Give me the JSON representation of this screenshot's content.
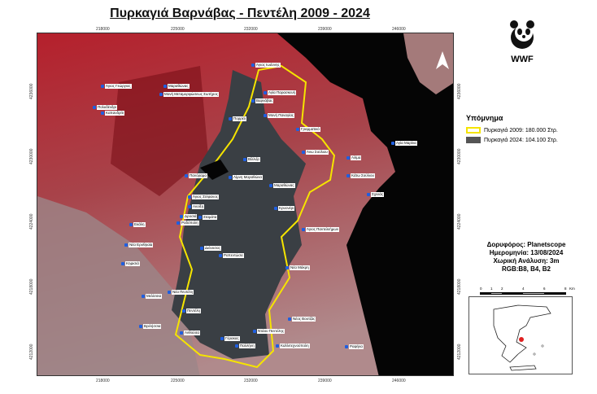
{
  "title": "Πυρκαγιά Βαρνάβας - Πεντέλη 2009 - 2024",
  "logo": {
    "text": "WWF",
    "icon": "panda-icon"
  },
  "north_arrow": {
    "icon": "north-arrow-icon"
  },
  "axes": {
    "x_ticks": [
      "218000",
      "225000",
      "232000",
      "239000",
      "246000"
    ],
    "y_ticks": [
      "4236000",
      "4230000",
      "4224000",
      "4218000",
      "4212000"
    ]
  },
  "legend": {
    "title": "Υπόμνημα",
    "items": [
      {
        "label": "Πυρκαγιά 2009: 180.000 Στρ.",
        "color": "#f5e400",
        "style": "outline"
      },
      {
        "label": "Πυρκαγιά 2024: 104.100 Στρ.",
        "color": "#555555",
        "style": "fill"
      }
    ]
  },
  "info": {
    "satellite": "Δορυφόρος: Planetscope",
    "date": "Ημερομηνία: 13/08/2024",
    "resolution": "Χωρική Ανάλυση: 3m",
    "bands": "RGB:B8, B4, B2"
  },
  "scale": {
    "labels": [
      "0",
      "1",
      "2",
      "4",
      "6",
      "8"
    ],
    "unit": "Km"
  },
  "colors": {
    "burn_2009": "#f5e400",
    "burn_2024": "#3a3f44",
    "sea": "#050505",
    "vegetation": "#b01e2a",
    "place_marker": "#1f5fe0"
  },
  "places": [
    {
      "name": "Άγιος Ιωάννης"
    },
    {
      "name": "Άγιος Γεώργιος"
    },
    {
      "name": "Μαραθώνας"
    },
    {
      "name": "Μονή Μεταμορφώσεως Σωτήρος"
    },
    {
      "name": "Αγία Παρασκευή"
    },
    {
      "name": "Βαρνάβας"
    },
    {
      "name": "Πολυδένδρι"
    },
    {
      "name": "Καπανδρίτι"
    },
    {
      "name": "Πορρέλ"
    },
    {
      "name": "Μονή Παναγίας"
    },
    {
      "name": "Γραμματικό"
    },
    {
      "name": "Άνω Σούλιου"
    },
    {
      "name": "Αγία Μαρίνα"
    },
    {
      "name": "Αλίμα"
    },
    {
      "name": "Κάτω Σούλιου"
    },
    {
      "name": "Σχινιάς"
    },
    {
      "name": "Μαραθώνας"
    },
    {
      "name": "Λίμνη Μαραθώνα"
    },
    {
      "name": "Βίλλιζα"
    },
    {
      "name": "Πανόραμα"
    },
    {
      "name": "Άγιος Στέφανος"
    },
    {
      "name": "Ανοίξη"
    },
    {
      "name": "Δροσιά"
    },
    {
      "name": "Ροδόπολη"
    },
    {
      "name": "Σταμάτα"
    },
    {
      "name": "Κρυονέρι"
    },
    {
      "name": "Άγιος Παντελεήμων"
    },
    {
      "name": "Διόνυσος"
    },
    {
      "name": "Ραπεντώσα"
    },
    {
      "name": "Νέα Μάκρη"
    },
    {
      "name": "Εκάλη"
    },
    {
      "name": "Νέα Ερυθραία"
    },
    {
      "name": "Κηφισιά"
    },
    {
      "name": "Νέα Πεντέλη"
    },
    {
      "name": "Μελίσσια"
    },
    {
      "name": "Πεντέλη"
    },
    {
      "name": "Νέος Βουτζάς"
    },
    {
      "name": "Ντάου Πεντέλης"
    },
    {
      "name": "Βριλήσσια"
    },
    {
      "name": "Γέρακας"
    },
    {
      "name": "Ανθούσα"
    },
    {
      "name": "Παλλήνη"
    },
    {
      "name": "Καλλιτεχνούπολη"
    },
    {
      "name": "Ραφήνα"
    }
  ]
}
